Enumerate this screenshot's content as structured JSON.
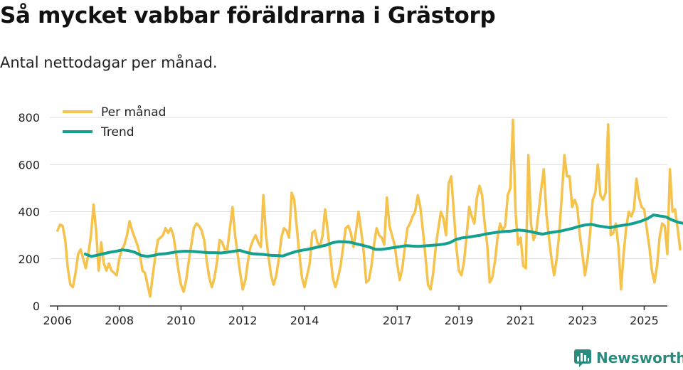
{
  "header": {
    "title": "Så mycket vabbar föräldrarna i Grästorp",
    "subtitle": "Antal nettodagar per månad."
  },
  "brand": {
    "name": "Newsworthy",
    "icon": "bar-chart-icon"
  },
  "colors": {
    "monthly": "#f5c24b",
    "trend": "#13a08f",
    "grid": "#dddddd",
    "axis": "#333333",
    "brand": "#2a8c7e"
  },
  "chart_data": {
    "type": "line",
    "title": "Så mycket vabbar föräldrarna i Grästorp",
    "subtitle": "Antal nettodagar per månad.",
    "xlabel": "",
    "ylabel": "",
    "ylim": [
      0,
      800
    ],
    "yticks": [
      0,
      200,
      400,
      600,
      800
    ],
    "xlim": [
      2005.75,
      2025.75
    ],
    "xticks": [
      2006,
      2008,
      2010,
      2012,
      2014,
      2017,
      2019,
      2021,
      2023,
      2025
    ],
    "grid": true,
    "legend_position": "top-left",
    "series": [
      {
        "name": "Per månad",
        "x_start": 2006.0,
        "x_step": 0.08333,
        "values": [
          320,
          345,
          340,
          280,
          160,
          90,
          80,
          140,
          220,
          240,
          200,
          160,
          220,
          300,
          430,
          320,
          150,
          270,
          180,
          150,
          180,
          150,
          140,
          130,
          200,
          240,
          260,
          300,
          360,
          320,
          290,
          260,
          220,
          150,
          140,
          90,
          40,
          130,
          210,
          280,
          290,
          300,
          330,
          310,
          330,
          300,
          230,
          150,
          90,
          60,
          110,
          190,
          260,
          330,
          350,
          340,
          320,
          280,
          190,
          120,
          80,
          120,
          190,
          280,
          270,
          240,
          240,
          330,
          420,
          300,
          220,
          140,
          70,
          110,
          190,
          250,
          280,
          300,
          270,
          250,
          470,
          300,
          210,
          130,
          90,
          130,
          200,
          290,
          330,
          320,
          290,
          480,
          450,
          330,
          220,
          120,
          80,
          130,
          180,
          310,
          320,
          270,
          250,
          300,
          410,
          320,
          220,
          120,
          80,
          120,
          170,
          250,
          330,
          340,
          310,
          250,
          320,
          400,
          320,
          230,
          100,
          110,
          170,
          260,
          330,
          300,
          290,
          260,
          460,
          340,
          300,
          260,
          180,
          110,
          160,
          250,
          330,
          350,
          380,
          400,
          470,
          420,
          320,
          210,
          90,
          70,
          140,
          250,
          330,
          400,
          370,
          300,
          520,
          550,
          400,
          250,
          150,
          130,
          190,
          300,
          420,
          380,
          350,
          460,
          510,
          470,
          350,
          260,
          100,
          120,
          190,
          290,
          350,
          320,
          340,
          470,
          500,
          790,
          400,
          260,
          290,
          170,
          160,
          640,
          350,
          280,
          310,
          400,
          500,
          580,
          390,
          290,
          200,
          130,
          200,
          310,
          470,
          640,
          550,
          550,
          420,
          450,
          420,
          300,
          220,
          130,
          200,
          310,
          450,
          480,
          600,
          470,
          450,
          480,
          770,
          300,
          310,
          350,
          250,
          70,
          220,
          330,
          400,
          380,
          410,
          540,
          460,
          420,
          410,
          330,
          250,
          150,
          100,
          170,
          290,
          350,
          340,
          220,
          580,
          400,
          410,
          330,
          240
        ]
      },
      {
        "name": "Trend",
        "x_start": 2006.9,
        "x_step": 0.2,
        "values": [
          220,
          210,
          216,
          222,
          228,
          232,
          238,
          235,
          228,
          215,
          210,
          214,
          220,
          222,
          226,
          230,
          232,
          232,
          230,
          228,
          226,
          226,
          225,
          228,
          232,
          236,
          228,
          222,
          220,
          218,
          215,
          214,
          212,
          222,
          230,
          236,
          240,
          246,
          252,
          258,
          268,
          273,
          272,
          270,
          263,
          257,
          250,
          240,
          240,
          244,
          248,
          252,
          256,
          254,
          253,
          255,
          257,
          259,
          262,
          268,
          282,
          289,
          292,
          296,
          300,
          306,
          310,
          314,
          316,
          318,
          322,
          320,
          316,
          310,
          305,
          310,
          314,
          318,
          324,
          330,
          338,
          344,
          346,
          340,
          336,
          332,
          338,
          342,
          346,
          352,
          360,
          370,
          386,
          382,
          378,
          365,
          355,
          350,
          350,
          346,
          360,
          390,
          416,
          424,
          420,
          412,
          414,
          414,
          410,
          406,
          404,
          396,
          394,
          428,
          426,
          424,
          420,
          412,
          405,
          380,
          365,
          358,
          356,
          350,
          348,
          340,
          338,
          334,
          328,
          322,
          316,
          306,
          296
        ]
      }
    ]
  }
}
